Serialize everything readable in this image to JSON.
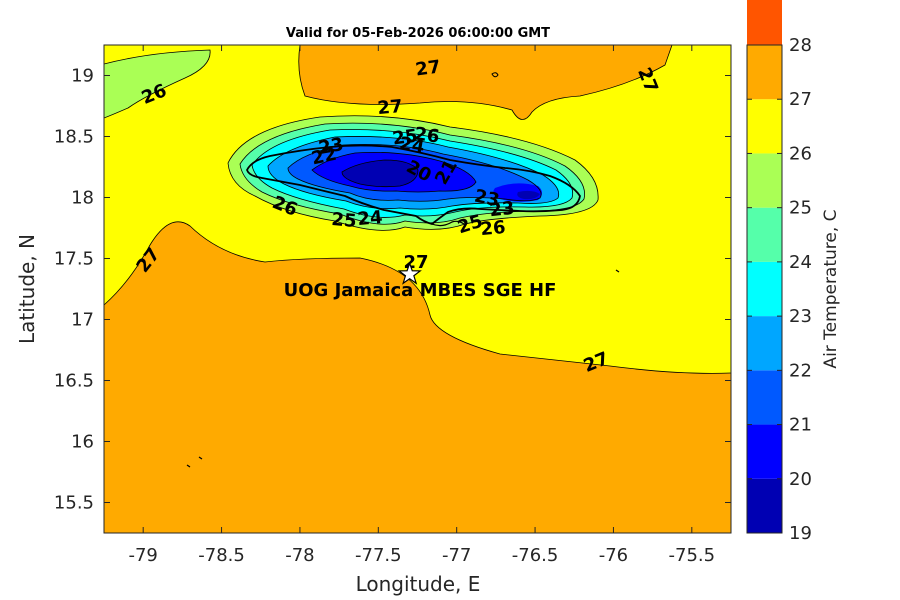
{
  "title": "Valid for 05-Feb-2026 06:00:00 GMT",
  "xlabel": "Longitude, E",
  "ylabel": "Latitude, N",
  "x_ticks": [
    "-79",
    "-78.5",
    "-78",
    "-77.5",
    "-77",
    "-76.5",
    "-76",
    "-75.5"
  ],
  "y_ticks": [
    "19",
    "18.5",
    "18",
    "17.5",
    "17",
    "16.5",
    "16",
    "15.5"
  ],
  "colorbar": {
    "label": "Air Temperature, C",
    "ticks": [
      "28",
      "27",
      "26",
      "25",
      "24",
      "23",
      "22",
      "21",
      "20",
      "19"
    ],
    "colors": [
      "#0000b3",
      "#0000ff",
      "#0059ff",
      "#00a6ff",
      "#00ffff",
      "#55ffaa",
      "#aaff55",
      "#ffff00",
      "#ffaa00",
      "#ff5500"
    ]
  },
  "colors": {
    "ocean_warm": "#ffaa00",
    "ocean_mid": "#ffff00",
    "band_25": "#aaff55",
    "band_24": "#55ffaa",
    "band_23": "#00ffff",
    "band_22": "#00a6ff",
    "band_21": "#0059ff",
    "band_20": "#0000ff",
    "band_19": "#0000b3"
  },
  "station": {
    "label": "UOG Jamaica MBES SGE HF",
    "lon": -77.3,
    "lat": 17.37
  },
  "chart_data": {
    "type": "contour-map",
    "title": "Valid for 05-Feb-2026 06:00:00 GMT",
    "variable": "Air Temperature, C",
    "xlabel": "Longitude, E",
    "ylabel": "Latitude, N",
    "xlim": [
      -79.25,
      -75.25
    ],
    "ylim": [
      15.25,
      19.25
    ],
    "clim": [
      19,
      28
    ],
    "levels": [
      19,
      20,
      21,
      22,
      23,
      24,
      25,
      26,
      27,
      28
    ],
    "contour_labels": [
      "27",
      "27",
      "27",
      "26",
      "27",
      "26",
      "25",
      "24",
      "23",
      "22",
      "21",
      "20",
      "23",
      "23",
      "26",
      "25",
      "24",
      "25",
      "26",
      "27",
      "27"
    ],
    "legend": "colorbar right"
  }
}
